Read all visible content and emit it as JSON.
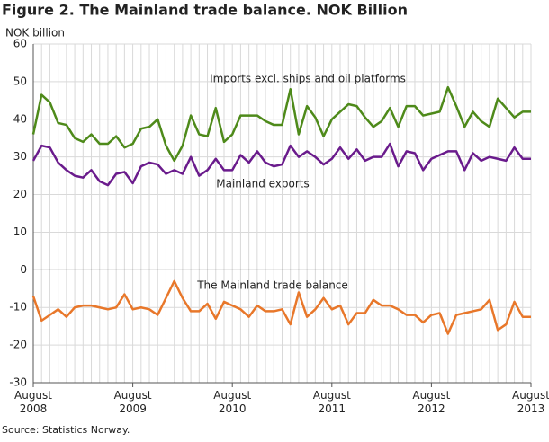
{
  "chart_data": {
    "type": "line",
    "title": "Figure 2. The Mainland trade balance. NOK Billion",
    "y_label": "NOK billion",
    "source": "Source: Statistics Norway.",
    "x": [
      "2008-08",
      "2008-09",
      "2008-10",
      "2008-11",
      "2008-12",
      "2009-01",
      "2009-02",
      "2009-03",
      "2009-04",
      "2009-05",
      "2009-06",
      "2009-07",
      "2009-08",
      "2009-09",
      "2009-10",
      "2009-11",
      "2009-12",
      "2010-01",
      "2010-02",
      "2010-03",
      "2010-04",
      "2010-05",
      "2010-06",
      "2010-07",
      "2010-08",
      "2010-09",
      "2010-10",
      "2010-11",
      "2010-12",
      "2011-01",
      "2011-02",
      "2011-03",
      "2011-04",
      "2011-05",
      "2011-06",
      "2011-07",
      "2011-08",
      "2011-09",
      "2011-10",
      "2011-11",
      "2011-12",
      "2012-01",
      "2012-02",
      "2012-03",
      "2012-04",
      "2012-05",
      "2012-06",
      "2012-07",
      "2012-08",
      "2012-09",
      "2012-10",
      "2012-11",
      "2012-12",
      "2013-01",
      "2013-02",
      "2013-03",
      "2013-04",
      "2013-05",
      "2013-06",
      "2013-07",
      "2013-08"
    ],
    "xticks": [
      {
        "value": "2008-08",
        "label": "August 2008"
      },
      {
        "value": "2009-08",
        "label": "August 2009"
      },
      {
        "value": "2010-08",
        "label": "August 2010"
      },
      {
        "value": "2011-08",
        "label": "August 2011"
      },
      {
        "value": "2012-08",
        "label": "August 2012"
      },
      {
        "value": "2013-08",
        "label": "August 2013"
      }
    ],
    "ylim": [
      -30,
      60
    ],
    "yticks": [
      -30,
      -20,
      -10,
      0,
      10,
      20,
      30,
      40,
      50,
      60
    ],
    "grid": true,
    "series": [
      {
        "name": "Imports excl. ships and oil platforms",
        "color": "#4e8a1a",
        "values": [
          36,
          46.5,
          44.5,
          39,
          38.5,
          35,
          34,
          36,
          33.5,
          33.5,
          35.5,
          32.5,
          33.5,
          37.5,
          38,
          40,
          33,
          29,
          33,
          41,
          36,
          35.5,
          43,
          34,
          36,
          41,
          41,
          41,
          39.5,
          38.5,
          38.5,
          48,
          36,
          43.5,
          40.5,
          35.5,
          40,
          42,
          44,
          43.5,
          40.5,
          38,
          39.5,
          43,
          38,
          43.5,
          43.5,
          41,
          41.5,
          42,
          48.5,
          43.5,
          38,
          42,
          39.5,
          38,
          45.5,
          43,
          40.5,
          42,
          42
        ]
      },
      {
        "name": "Mainland exports",
        "color": "#6a1b8c",
        "values": [
          29,
          33,
          32.5,
          28.5,
          26.5,
          25,
          24.5,
          26.5,
          23.5,
          22.5,
          25.5,
          26,
          23,
          27.5,
          28.5,
          28,
          25.5,
          26.5,
          25.5,
          30,
          25,
          26.5,
          29.5,
          26.5,
          26.5,
          30.5,
          28.5,
          31.5,
          28.5,
          27.5,
          28,
          33,
          30,
          31.5,
          30,
          28,
          29.5,
          32.5,
          29.5,
          32,
          29,
          30,
          30,
          33.5,
          27.5,
          31.5,
          31,
          26.5,
          29.5,
          30.5,
          31.5,
          31.5,
          26.5,
          31,
          29,
          30,
          29.5,
          29,
          32.5,
          29.5,
          29.5
        ]
      },
      {
        "name": "The Mainland trade balance",
        "color": "#e8772a",
        "values": [
          -7,
          -13.5,
          -12,
          -10.5,
          -12.5,
          -10,
          -9.5,
          -9.5,
          -10,
          -10.5,
          -10,
          -6.5,
          -10.5,
          -10,
          -10.5,
          -12,
          -7.5,
          -3,
          -7.5,
          -11,
          -11,
          -9,
          -13,
          -8.5,
          -9.5,
          -10.5,
          -12.5,
          -9.5,
          -11,
          -11,
          -10.5,
          -14.5,
          -6,
          -12.5,
          -10.5,
          -7.5,
          -10.5,
          -9.5,
          -14.5,
          -11.5,
          -11.5,
          -8,
          -9.5,
          -9.5,
          -10.5,
          -12,
          -12,
          -14,
          -12,
          -11.5,
          -17,
          -12,
          -11.5,
          -11,
          -10.5,
          -8,
          -16,
          -14.5,
          -8.5,
          -12.5,
          -12.5
        ]
      }
    ]
  }
}
